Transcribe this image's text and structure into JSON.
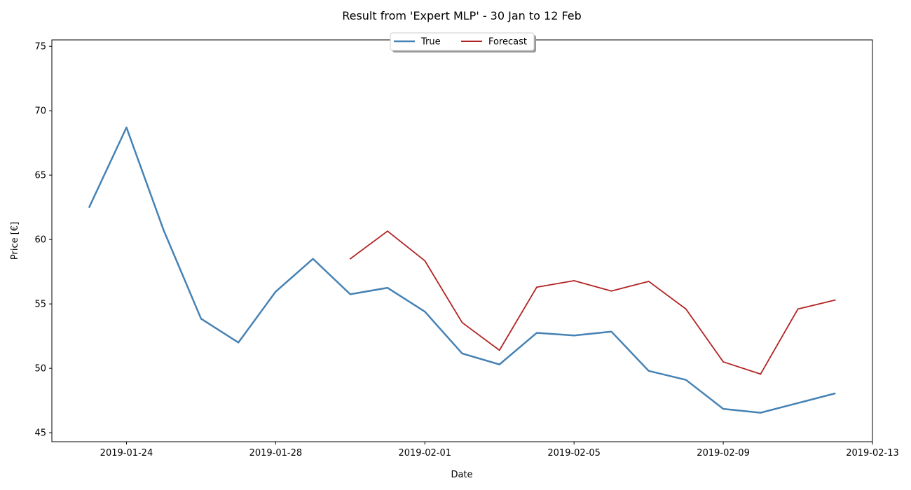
{
  "chart_data": {
    "type": "line",
    "title": "Result from 'Expert MLP' - 30 Jan to 12 Feb",
    "xlabel": "Date",
    "ylabel": "Price [€]",
    "xlim": [
      "2019-01-22",
      "2019-02-13"
    ],
    "ylim": [
      44.3,
      75.5
    ],
    "x_ticks": [
      "2019-01-24",
      "2019-01-28",
      "2019-02-01",
      "2019-02-05",
      "2019-02-09",
      "2019-02-13"
    ],
    "y_ticks": [
      45,
      50,
      55,
      60,
      65,
      70,
      75
    ],
    "grid": false,
    "legend": {
      "placement": "top-center",
      "columns": 2
    },
    "series": [
      {
        "name": "True",
        "color": "#4682b4",
        "x": [
          "2019-01-23",
          "2019-01-24",
          "2019-01-25",
          "2019-01-26",
          "2019-01-27",
          "2019-01-28",
          "2019-01-29",
          "2019-01-30",
          "2019-01-31",
          "2019-02-01",
          "2019-02-02",
          "2019-02-03",
          "2019-02-04",
          "2019-02-05",
          "2019-02-06",
          "2019-02-07",
          "2019-02-08",
          "2019-02-09",
          "2019-02-10",
          "2019-02-11",
          "2019-02-12"
        ],
        "values": [
          62.5,
          68.7,
          60.7,
          53.85,
          52.0,
          55.95,
          58.5,
          55.75,
          56.25,
          54.4,
          51.15,
          50.3,
          52.75,
          52.55,
          52.85,
          49.8,
          49.1,
          46.85,
          46.55,
          47.3,
          48.05
        ]
      },
      {
        "name": "Forecast",
        "color": "#b22222",
        "x": [
          "2019-01-30",
          "2019-01-31",
          "2019-02-01",
          "2019-02-02",
          "2019-02-03",
          "2019-02-04",
          "2019-02-05",
          "2019-02-06",
          "2019-02-07",
          "2019-02-08",
          "2019-02-09",
          "2019-02-10",
          "2019-02-11",
          "2019-02-12"
        ],
        "values": [
          58.5,
          60.65,
          58.35,
          53.55,
          51.4,
          56.3,
          56.8,
          56.0,
          56.75,
          54.6,
          50.5,
          49.55,
          54.6,
          55.3
        ]
      }
    ]
  }
}
